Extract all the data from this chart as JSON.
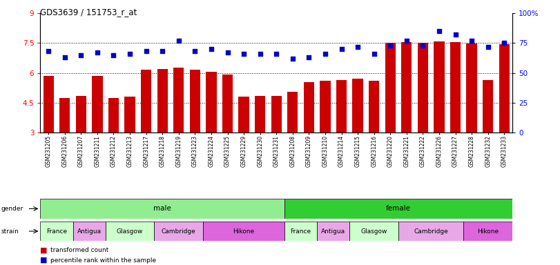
{
  "title": "GDS3639 / 151753_r_at",
  "samples": [
    "GSM231205",
    "GSM231206",
    "GSM231207",
    "GSM231211",
    "GSM231212",
    "GSM231213",
    "GSM231217",
    "GSM231218",
    "GSM231219",
    "GSM231223",
    "GSM231224",
    "GSM231225",
    "GSM231229",
    "GSM231230",
    "GSM231231",
    "GSM231208",
    "GSM231209",
    "GSM231210",
    "GSM231214",
    "GSM231215",
    "GSM231216",
    "GSM231220",
    "GSM231221",
    "GSM231222",
    "GSM231226",
    "GSM231227",
    "GSM231228",
    "GSM231232",
    "GSM231233"
  ],
  "bar_values": [
    5.85,
    4.75,
    4.85,
    5.85,
    4.75,
    4.82,
    6.15,
    6.2,
    6.25,
    6.15,
    6.05,
    5.9,
    4.82,
    4.85,
    4.85,
    5.05,
    5.55,
    5.6,
    5.65,
    5.7,
    5.62,
    7.5,
    7.55,
    7.5,
    7.58,
    7.55,
    7.48,
    5.65,
    7.45
  ],
  "dot_values": [
    68,
    63,
    65,
    67,
    65,
    66,
    68,
    68,
    77,
    68,
    70,
    67,
    66,
    66,
    66,
    62,
    63,
    66,
    70,
    72,
    66,
    73,
    77,
    73,
    85,
    82,
    77,
    72,
    75
  ],
  "ylim_left": [
    3,
    9
  ],
  "ylim_right": [
    0,
    100
  ],
  "yticks_left": [
    3,
    4.5,
    6,
    7.5,
    9
  ],
  "ytick_labels_left": [
    "3",
    "4.5",
    "6",
    "7.5",
    "9"
  ],
  "yticks_right": [
    0,
    25,
    50,
    75,
    100
  ],
  "ytick_labels_right": [
    "0",
    "25",
    "50",
    "75",
    "100%"
  ],
  "bar_color": "#cc0000",
  "dot_color": "#0000cc",
  "hline_values": [
    4.5,
    6.0,
    7.5
  ],
  "gender_groups": [
    {
      "label": "male",
      "start": 0,
      "end": 15,
      "color": "#90ee90"
    },
    {
      "label": "female",
      "start": 15,
      "end": 29,
      "color": "#32cd32"
    }
  ],
  "strain_groups": [
    {
      "label": "France",
      "start": 0,
      "end": 2,
      "color": "#ccffcc"
    },
    {
      "label": "Antigua",
      "start": 2,
      "end": 4,
      "color": "#e8a8e8"
    },
    {
      "label": "Glasgow",
      "start": 4,
      "end": 7,
      "color": "#ccffcc"
    },
    {
      "label": "Cambridge",
      "start": 7,
      "end": 10,
      "color": "#e8a8e8"
    },
    {
      "label": "Hikone",
      "start": 10,
      "end": 15,
      "color": "#dd66dd"
    },
    {
      "label": "France",
      "start": 15,
      "end": 17,
      "color": "#ccffcc"
    },
    {
      "label": "Antigua",
      "start": 17,
      "end": 19,
      "color": "#e8a8e8"
    },
    {
      "label": "Glasgow",
      "start": 19,
      "end": 22,
      "color": "#ccffcc"
    },
    {
      "label": "Cambridge",
      "start": 22,
      "end": 26,
      "color": "#e8a8e8"
    },
    {
      "label": "Hikone",
      "start": 26,
      "end": 29,
      "color": "#dd66dd"
    }
  ]
}
